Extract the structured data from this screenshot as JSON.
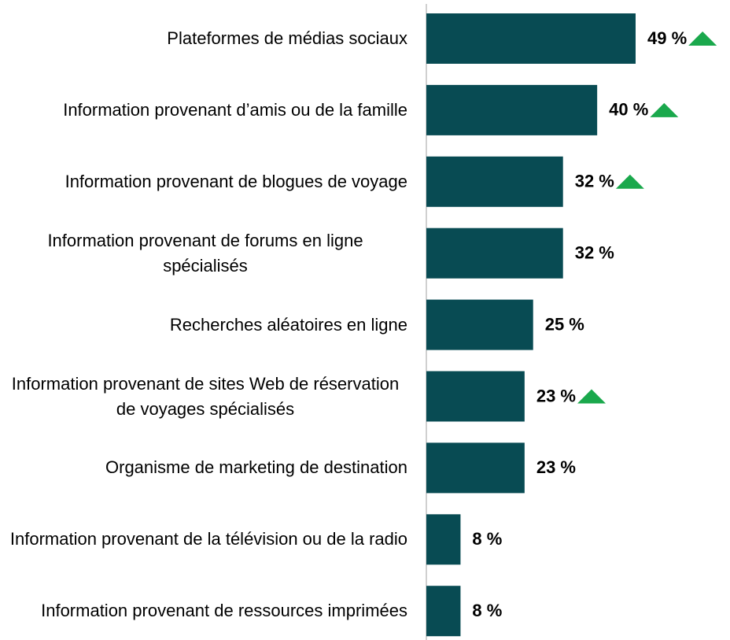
{
  "chart_data": {
    "type": "barh",
    "categories": [
      "Plateformes de médias sociaux",
      "Information provenant d’amis ou de la famille",
      "Information provenant de blogues de voyage",
      "Information provenant de forums en ligne spécialisés",
      "Recherches aléatoires en ligne",
      "Information provenant de sites Web de réservation de voyages spécialisés",
      "Organisme de marketing de destination",
      "Information provenant de la télévision ou de la radio",
      "Information provenant de ressources imprimées"
    ],
    "values": [
      49,
      40,
      32,
      32,
      25,
      23,
      23,
      8,
      8
    ],
    "value_labels": [
      "49 %",
      "40 %",
      "32 %",
      "32 %",
      "25 %",
      "23 %",
      "23 %",
      "8 %",
      "8 %"
    ],
    "increase": [
      true,
      true,
      true,
      false,
      false,
      true,
      false,
      false,
      false
    ],
    "color": "#084b53",
    "increase_color": "#1aa84c",
    "xlim": [
      0,
      70
    ]
  }
}
